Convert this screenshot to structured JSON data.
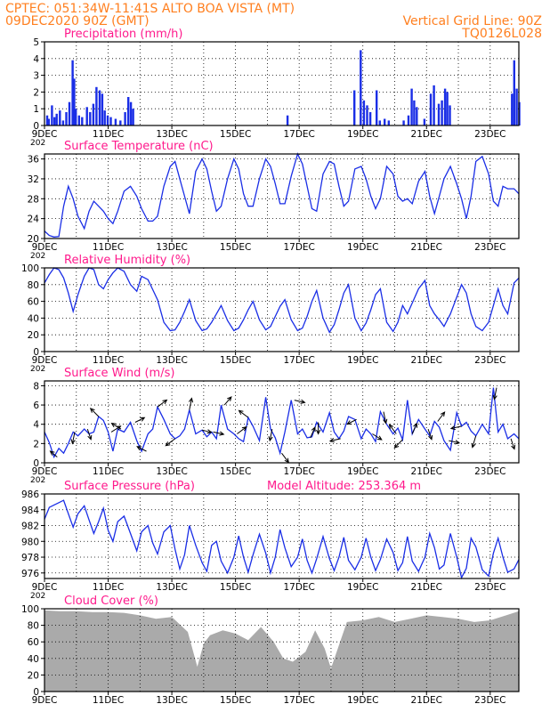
{
  "header": {
    "line1_left": "CPTEC:   051:34W-11:41S   ALTO BOA VISTA (MT)",
    "line2_left": "09DEC2020 90Z (GMT)",
    "line1_right": "Vertical Grid Line: 90Z",
    "line2_right": "TQ0126L028"
  },
  "colors": {
    "header": "#ff7f1f",
    "title": "#ff1a8c",
    "series": "#1a2ee6",
    "cloud": "#aaaaaa",
    "vector": "#000000"
  },
  "x_axis": {
    "tick_labels": [
      "9DEC",
      "11DEC",
      "13DEC",
      "15DEC",
      "17DEC",
      "19DEC",
      "21DEC",
      "23DEC"
    ],
    "cut_label": "202"
  },
  "chart_data": [
    {
      "type": "bar",
      "title": "Precipitation (mm/h)",
      "ylim": [
        0,
        5
      ],
      "yticks": [
        "0",
        "1",
        "2",
        "3",
        "4",
        "5"
      ],
      "grid": true,
      "events": [
        {
          "day": 0.05,
          "value": 0.6
        },
        {
          "day": 0.1,
          "value": 0.4
        },
        {
          "day": 0.2,
          "value": 1.2
        },
        {
          "day": 0.28,
          "value": 0.5
        },
        {
          "day": 0.35,
          "value": 0.7
        },
        {
          "day": 0.45,
          "value": 0.9
        },
        {
          "day": 0.55,
          "value": 0.3
        },
        {
          "day": 0.65,
          "value": 0.8
        },
        {
          "day": 0.75,
          "value": 1.4
        },
        {
          "day": 0.85,
          "value": 3.9
        },
        {
          "day": 0.9,
          "value": 2.8
        },
        {
          "day": 0.95,
          "value": 1.0
        },
        {
          "day": 1.05,
          "value": 0.6
        },
        {
          "day": 1.15,
          "value": 0.5
        },
        {
          "day": 1.3,
          "value": 1.1
        },
        {
          "day": 1.4,
          "value": 0.8
        },
        {
          "day": 1.5,
          "value": 1.3
        },
        {
          "day": 1.6,
          "value": 2.3
        },
        {
          "day": 1.7,
          "value": 2.1
        },
        {
          "day": 1.78,
          "value": 1.9
        },
        {
          "day": 1.86,
          "value": 0.9
        },
        {
          "day": 1.95,
          "value": 0.6
        },
        {
          "day": 2.05,
          "value": 0.5
        },
        {
          "day": 2.2,
          "value": 0.4
        },
        {
          "day": 2.35,
          "value": 0.3
        },
        {
          "day": 2.5,
          "value": 0.8
        },
        {
          "day": 2.6,
          "value": 1.7
        },
        {
          "day": 2.68,
          "value": 1.4
        },
        {
          "day": 2.75,
          "value": 1.0
        },
        {
          "day": 7.6,
          "value": 0.6
        },
        {
          "day": 9.7,
          "value": 2.1
        },
        {
          "day": 9.9,
          "value": 4.5
        },
        {
          "day": 10.0,
          "value": 1.5
        },
        {
          "day": 10.1,
          "value": 1.2
        },
        {
          "day": 10.2,
          "value": 0.8
        },
        {
          "day": 10.4,
          "value": 2.1
        },
        {
          "day": 10.5,
          "value": 0.3
        },
        {
          "day": 10.65,
          "value": 0.4
        },
        {
          "day": 10.78,
          "value": 0.3
        },
        {
          "day": 11.25,
          "value": 0.3
        },
        {
          "day": 11.4,
          "value": 0.6
        },
        {
          "day": 11.5,
          "value": 2.2
        },
        {
          "day": 11.58,
          "value": 1.5
        },
        {
          "day": 11.66,
          "value": 1.1
        },
        {
          "day": 11.9,
          "value": 0.4
        },
        {
          "day": 12.1,
          "value": 1.9
        },
        {
          "day": 12.2,
          "value": 2.4
        },
        {
          "day": 12.35,
          "value": 1.3
        },
        {
          "day": 12.45,
          "value": 1.5
        },
        {
          "day": 12.55,
          "value": 2.2
        },
        {
          "day": 12.62,
          "value": 2.0
        },
        {
          "day": 12.7,
          "value": 1.2
        },
        {
          "day": 14.65,
          "value": 1.9
        },
        {
          "day": 14.72,
          "value": 3.9
        },
        {
          "day": 14.8,
          "value": 2.2
        },
        {
          "day": 14.88,
          "value": 1.4
        }
      ]
    },
    {
      "type": "line",
      "title": "Surface Temperature (nC)",
      "ylim": [
        20,
        37
      ],
      "yticks": [
        "20",
        "24",
        "28",
        "32",
        "36"
      ],
      "grid": true,
      "x": [
        0,
        0.15,
        0.3,
        0.45,
        0.6,
        0.75,
        0.9,
        1.05,
        1.25,
        1.4,
        1.55,
        1.7,
        1.85,
        2.0,
        2.15,
        2.3,
        2.5,
        2.7,
        2.9,
        3.05,
        3.25,
        3.4,
        3.55,
        3.75,
        3.95,
        4.1,
        4.25,
        4.4,
        4.55,
        4.75,
        4.95,
        5.1,
        5.25,
        5.4,
        5.55,
        5.75,
        5.95,
        6.1,
        6.25,
        6.4,
        6.55,
        6.75,
        6.95,
        7.1,
        7.25,
        7.4,
        7.55,
        7.75,
        7.95,
        8.1,
        8.25,
        8.4,
        8.55,
        8.75,
        8.95,
        9.1,
        9.25,
        9.4,
        9.55,
        9.75,
        9.95,
        10.1,
        10.25,
        10.4,
        10.55,
        10.75,
        10.95,
        11.1,
        11.25,
        11.4,
        11.55,
        11.75,
        11.95,
        12.1,
        12.25,
        12.4,
        12.55,
        12.75,
        12.95,
        13.1,
        13.25,
        13.4,
        13.55,
        13.75,
        13.95,
        14.1,
        14.25,
        14.4,
        14.55,
        14.75,
        14.9
      ],
      "values": [
        21.5,
        20.6,
        20.3,
        20.4,
        26.5,
        30.5,
        28.0,
        24.5,
        22.0,
        25.5,
        27.5,
        26.5,
        25.5,
        24.0,
        23.0,
        25.5,
        29.5,
        30.5,
        28.5,
        26.0,
        23.5,
        23.5,
        24.5,
        30.5,
        34.5,
        35.5,
        32.0,
        28.5,
        25.0,
        33.5,
        36.0,
        34.0,
        29.5,
        25.5,
        26.5,
        32.0,
        36.0,
        34.0,
        29.0,
        26.5,
        26.5,
        32.0,
        36.0,
        34.5,
        31.0,
        27.0,
        27.0,
        32.5,
        37.0,
        35.0,
        30.5,
        26.0,
        25.5,
        33.0,
        35.5,
        35.0,
        30.5,
        26.5,
        27.5,
        34.0,
        34.5,
        32.0,
        28.5,
        26.0,
        28.0,
        34.5,
        33.0,
        28.5,
        27.5,
        28.0,
        27.0,
        31.5,
        33.5,
        28.5,
        25.0,
        28.5,
        32.0,
        34.5,
        31.0,
        28.0,
        24.0,
        28.5,
        35.5,
        36.5,
        33.0,
        27.5,
        26.5,
        30.5,
        30.0,
        30.0,
        29.0
      ]
    },
    {
      "type": "line",
      "title": "Relative Humidity (%)",
      "ylim": [
        0,
        100
      ],
      "yticks": [
        "0",
        "20",
        "40",
        "60",
        "80",
        "100"
      ],
      "grid": true,
      "x": [
        0,
        0.15,
        0.3,
        0.45,
        0.6,
        0.75,
        0.9,
        1.05,
        1.25,
        1.4,
        1.55,
        1.7,
        1.85,
        2.0,
        2.15,
        2.3,
        2.5,
        2.7,
        2.9,
        3.05,
        3.25,
        3.4,
        3.55,
        3.75,
        3.95,
        4.1,
        4.25,
        4.4,
        4.55,
        4.75,
        4.95,
        5.1,
        5.25,
        5.4,
        5.55,
        5.75,
        5.95,
        6.1,
        6.25,
        6.4,
        6.55,
        6.75,
        6.95,
        7.1,
        7.25,
        7.4,
        7.55,
        7.75,
        7.95,
        8.1,
        8.25,
        8.4,
        8.55,
        8.75,
        8.95,
        9.1,
        9.25,
        9.4,
        9.55,
        9.75,
        9.95,
        10.1,
        10.25,
        10.4,
        10.55,
        10.75,
        10.95,
        11.1,
        11.25,
        11.4,
        11.55,
        11.75,
        11.95,
        12.1,
        12.25,
        12.4,
        12.55,
        12.75,
        12.95,
        13.1,
        13.25,
        13.4,
        13.55,
        13.75,
        13.95,
        14.1,
        14.25,
        14.4,
        14.55,
        14.75,
        14.9
      ],
      "values": [
        82,
        92,
        100,
        98,
        88,
        70,
        48,
        68,
        90,
        100,
        98,
        80,
        75,
        86,
        94,
        100,
        96,
        80,
        72,
        90,
        86,
        74,
        62,
        35,
        25,
        26,
        35,
        48,
        62,
        37,
        25,
        27,
        35,
        45,
        55,
        37,
        25,
        28,
        38,
        50,
        60,
        38,
        26,
        30,
        42,
        54,
        62,
        38,
        25,
        28,
        42,
        60,
        73,
        40,
        23,
        32,
        50,
        70,
        80,
        40,
        25,
        34,
        50,
        68,
        75,
        35,
        24,
        35,
        55,
        45,
        58,
        75,
        85,
        55,
        45,
        38,
        30,
        45,
        65,
        80,
        70,
        45,
        30,
        25,
        35,
        55,
        75,
        55,
        45,
        82,
        88
      ]
    },
    {
      "type": "line",
      "title": "Surface Wind (m/s)",
      "ylim": [
        0,
        8.5
      ],
      "yticks": [
        "0",
        "2",
        "4",
        "6",
        "8"
      ],
      "grid": true,
      "x": [
        0,
        0.15,
        0.3,
        0.45,
        0.6,
        0.75,
        0.9,
        1.05,
        1.25,
        1.4,
        1.55,
        1.7,
        1.85,
        2.0,
        2.15,
        2.3,
        2.5,
        2.7,
        2.9,
        3.05,
        3.25,
        3.4,
        3.55,
        3.75,
        3.95,
        4.1,
        4.25,
        4.4,
        4.55,
        4.75,
        4.95,
        5.1,
        5.25,
        5.4,
        5.55,
        5.75,
        5.95,
        6.1,
        6.25,
        6.4,
        6.55,
        6.75,
        6.95,
        7.1,
        7.25,
        7.4,
        7.55,
        7.75,
        7.95,
        8.1,
        8.25,
        8.4,
        8.55,
        8.75,
        8.95,
        9.1,
        9.25,
        9.4,
        9.55,
        9.75,
        9.95,
        10.1,
        10.25,
        10.4,
        10.55,
        10.75,
        10.95,
        11.1,
        11.25,
        11.4,
        11.55,
        11.75,
        11.95,
        12.1,
        12.25,
        12.4,
        12.55,
        12.75,
        12.95,
        13.1,
        13.25,
        13.4,
        13.55,
        13.75,
        13.95,
        14.1,
        14.25,
        14.4,
        14.55,
        14.75,
        14.9
      ],
      "values": [
        3.2,
        2.1,
        0.6,
        1.5,
        1.0,
        2.0,
        3.2,
        2.8,
        3.5,
        3.0,
        3.2,
        4.8,
        4.4,
        3.2,
        1.2,
        3.5,
        3.2,
        4.2,
        2.3,
        1.2,
        3.0,
        3.5,
        5.8,
        4.5,
        3.0,
        2.5,
        2.8,
        3.5,
        5.5,
        3.0,
        3.4,
        2.7,
        3.2,
        2.5,
        6.0,
        3.5,
        3.0,
        2.5,
        2.2,
        4.7,
        3.8,
        2.3,
        6.8,
        3.5,
        2.6,
        1.0,
        3.2,
        6.5,
        3.0,
        3.5,
        2.6,
        2.7,
        4.2,
        3.2,
        5.2,
        3.2,
        2.5,
        3.3,
        4.8,
        4.5,
        2.5,
        3.5,
        3.0,
        2.2,
        5.3,
        4.0,
        3.0,
        3.6,
        2.4,
        6.5,
        3.0,
        4.5,
        3.5,
        2.8,
        4.3,
        3.7,
        2.3,
        1.3,
        5.2,
        3.8,
        4.2,
        3.3,
        2.8,
        4.0,
        3.0,
        7.8,
        3.2,
        4.0,
        2.5,
        3.0,
        2.5
      ],
      "arrows": [
        {
          "day": 0.4,
          "dx": -0.6,
          "dy": -0.5
        },
        {
          "day": 0.95,
          "dx": -0.2,
          "dy": 1
        },
        {
          "day": 1.35,
          "dx": 0.3,
          "dy": 0.9
        },
        {
          "day": 1.7,
          "dx": -0.7,
          "dy": -0.7
        },
        {
          "day": 2.1,
          "dx": 0.8,
          "dy": -0.5
        },
        {
          "day": 2.4,
          "dx": -0.8,
          "dy": -0.5
        },
        {
          "day": 2.85,
          "dx": 0.8,
          "dy": -0.4
        },
        {
          "day": 3.2,
          "dx": -0.8,
          "dy": -0.4
        },
        {
          "day": 3.55,
          "dx": 0.8,
          "dy": -0.6
        },
        {
          "day": 4.1,
          "dx": -0.8,
          "dy": 0.6
        },
        {
          "day": 4.55,
          "dx": 0.2,
          "dy": -1
        },
        {
          "day": 4.95,
          "dx": 0.8,
          "dy": 0.2
        },
        {
          "day": 5.3,
          "dx": 0.9,
          "dy": 0.2
        },
        {
          "day": 5.65,
          "dx": 0.6,
          "dy": -0.7
        },
        {
          "day": 6.05,
          "dx": 0.8,
          "dy": -0.6
        },
        {
          "day": 6.4,
          "dx": -0.8,
          "dy": -0.6
        },
        {
          "day": 7.15,
          "dx": -0.2,
          "dy": 1
        },
        {
          "day": 7.45,
          "dx": 0.6,
          "dy": 0.8
        },
        {
          "day": 7.85,
          "dx": 0.9,
          "dy": 0.2
        },
        {
          "day": 8.35,
          "dx": 0.4,
          "dy": -0.9
        },
        {
          "day": 8.6,
          "dx": 0,
          "dy": 1
        },
        {
          "day": 9.3,
          "dx": -0.9,
          "dy": 0.2
        },
        {
          "day": 9.8,
          "dx": -0.8,
          "dy": 0.4
        },
        {
          "day": 10.3,
          "dx": 0.8,
          "dy": 0.5
        },
        {
          "day": 10.65,
          "dx": 0.2,
          "dy": 1
        },
        {
          "day": 11.05,
          "dx": -0.6,
          "dy": -0.8
        },
        {
          "day": 11.25,
          "dx": -0.7,
          "dy": 0.7
        },
        {
          "day": 11.55,
          "dx": 0.4,
          "dy": -0.9
        },
        {
          "day": 12.05,
          "dx": 0.3,
          "dy": 0.9
        },
        {
          "day": 12.35,
          "dx": 0.6,
          "dy": -0.8
        },
        {
          "day": 12.7,
          "dx": 0.9,
          "dy": 0.2
        },
        {
          "day": 13.1,
          "dx": -0.9,
          "dy": 0.2
        },
        {
          "day": 13.55,
          "dx": -0.3,
          "dy": 1
        },
        {
          "day": 14.2,
          "dx": -0.2,
          "dy": 1
        },
        {
          "day": 14.65,
          "dx": 0.3,
          "dy": 0.9
        }
      ]
    },
    {
      "type": "line",
      "title": "Surface Pressure (hPa)",
      "annotation": "Model Altitude: 253.364 m",
      "ylim": [
        975.3,
        986
      ],
      "yticks": [
        "976",
        "978",
        "980",
        "982",
        "984",
        "986"
      ],
      "grid": true,
      "x": [
        0,
        0.15,
        0.3,
        0.45,
        0.6,
        0.75,
        0.9,
        1.05,
        1.25,
        1.4,
        1.55,
        1.7,
        1.85,
        2.0,
        2.15,
        2.3,
        2.5,
        2.7,
        2.9,
        3.05,
        3.25,
        3.4,
        3.55,
        3.75,
        3.95,
        4.1,
        4.25,
        4.4,
        4.55,
        4.75,
        4.95,
        5.1,
        5.25,
        5.4,
        5.55,
        5.75,
        5.95,
        6.1,
        6.25,
        6.4,
        6.55,
        6.75,
        6.95,
        7.1,
        7.25,
        7.4,
        7.55,
        7.75,
        7.95,
        8.1,
        8.25,
        8.4,
        8.55,
        8.75,
        8.95,
        9.1,
        9.25,
        9.4,
        9.55,
        9.75,
        9.95,
        10.1,
        10.25,
        10.4,
        10.55,
        10.75,
        10.95,
        11.1,
        11.25,
        11.4,
        11.55,
        11.75,
        11.95,
        12.1,
        12.25,
        12.4,
        12.55,
        12.75,
        12.95,
        13.1,
        13.25,
        13.4,
        13.55,
        13.75,
        13.95,
        14.1,
        14.25,
        14.4,
        14.55,
        14.75,
        14.9
      ],
      "values": [
        982.8,
        984.3,
        984.6,
        984.9,
        985.2,
        983.5,
        981.8,
        983.5,
        984.5,
        982.7,
        981.0,
        982.5,
        984.2,
        981.4,
        980.0,
        982.5,
        983.2,
        981.0,
        978.8,
        981.2,
        982.0,
        979.8,
        978.4,
        981.2,
        982.0,
        979.0,
        976.5,
        978.3,
        982.0,
        979.5,
        977.3,
        976.2,
        979.5,
        980.0,
        977.5,
        976.0,
        978.0,
        980.7,
        978.0,
        976.1,
        978.3,
        980.9,
        978.5,
        976.0,
        978.0,
        981.5,
        979.2,
        976.8,
        978.0,
        980.3,
        977.6,
        976.0,
        977.8,
        980.6,
        977.8,
        976.3,
        978.0,
        980.5,
        977.6,
        976.4,
        978.0,
        980.4,
        978.0,
        976.3,
        977.7,
        980.3,
        978.6,
        976.3,
        977.3,
        980.6,
        977.5,
        976.2,
        978.0,
        981.0,
        979.2,
        976.5,
        977.0,
        981.0,
        978.0,
        975.4,
        976.6,
        980.4,
        979.3,
        976.4,
        975.6,
        978.5,
        980.4,
        978.0,
        976.1,
        976.5,
        977.7
      ]
    },
    {
      "type": "area",
      "title": "Cloud Cover (%)",
      "ylim": [
        0,
        100
      ],
      "yticks": [
        "0",
        "20",
        "40",
        "60",
        "80",
        "100"
      ],
      "grid": true,
      "x": [
        0,
        0.5,
        1.0,
        1.5,
        2.0,
        2.5,
        3.0,
        3.5,
        4.0,
        4.5,
        4.8,
        5.0,
        5.2,
        5.6,
        6.0,
        6.4,
        6.8,
        7.2,
        7.5,
        7.8,
        8.2,
        8.5,
        8.8,
        9.0,
        9.5,
        10.0,
        10.5,
        11.0,
        11.5,
        12.0,
        12.5,
        13.0,
        13.5,
        14.0,
        14.5,
        14.9
      ],
      "values": [
        98,
        97,
        97,
        96,
        96,
        95,
        92,
        88,
        90,
        72,
        30,
        58,
        68,
        74,
        70,
        62,
        78,
        60,
        40,
        36,
        48,
        74,
        52,
        28,
        84,
        86,
        90,
        84,
        88,
        92,
        90,
        88,
        84,
        86,
        92,
        97
      ]
    }
  ]
}
